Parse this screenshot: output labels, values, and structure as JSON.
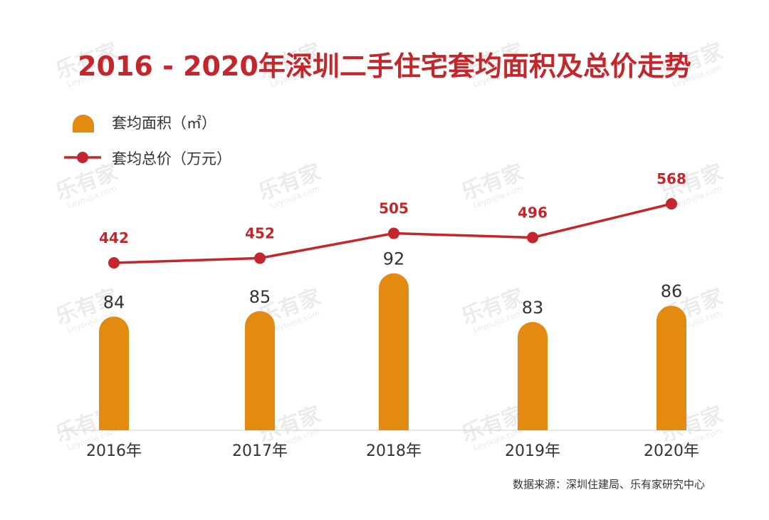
{
  "watermark": {
    "text": "乐有家",
    "sub": "Leyoujia.com"
  },
  "colors": {
    "title": "#c3272b",
    "bar": "#e38a10",
    "line": "#c3272b",
    "text": "#333333",
    "axis": "#dddddd"
  },
  "chart_data": {
    "type": "bar",
    "title": "2016 - 2020年深圳二手住宅套均面积及总价走势",
    "categories": [
      "2016年",
      "2017年",
      "2018年",
      "2019年",
      "2020年"
    ],
    "series": [
      {
        "name": "套均面积（㎡）",
        "type": "bar",
        "icon": "rounded-bar-icon",
        "values": [
          84,
          85,
          92,
          83,
          86
        ]
      },
      {
        "name": "套均总价（万元）",
        "type": "line",
        "icon": "line-dot-icon",
        "values": [
          442,
          452,
          505,
          496,
          568
        ]
      }
    ],
    "legend_position": "top-left",
    "grid": false,
    "show_value_axes": false,
    "source": "数据来源：深圳住建局、乐有家研究中心"
  }
}
